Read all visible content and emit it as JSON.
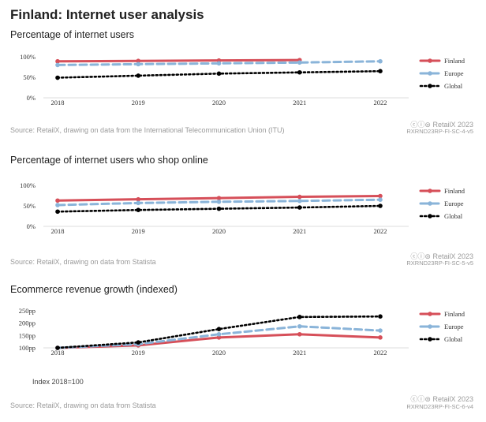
{
  "page": {
    "title": "Finland: Internet user analysis"
  },
  "colors": {
    "Finland": "#d64f59",
    "Europe": "#8ab4d9",
    "Global": "#000000"
  },
  "chart_data": [
    {
      "type": "line",
      "title": "Percentage of internet users",
      "x": [
        "2018",
        "2019",
        "2020",
        "2021",
        "2022"
      ],
      "y_ticks": [
        "0%",
        "50%",
        "100%"
      ],
      "ylim": [
        0,
        100
      ],
      "series": [
        {
          "name": "Finland",
          "values": [
            89,
            90,
            91,
            92,
            null
          ],
          "style": "solid"
        },
        {
          "name": "Europe",
          "values": [
            80,
            82,
            84,
            86,
            89
          ],
          "style": "dashed"
        },
        {
          "name": "Global",
          "values": [
            49,
            54,
            59,
            62,
            65
          ],
          "style": "dotted"
        }
      ],
      "legend": "right",
      "source": "Source: RetailX, drawing on data from the International Telecommunication Union (ITU)",
      "brand": "ⓒⓘ⊜ RetailX 2023",
      "code": "RXRND23RP-FI-SC-4-v5"
    },
    {
      "type": "line",
      "title": "Percentage of internet users who shop online",
      "x": [
        "2018",
        "2019",
        "2020",
        "2021",
        "2022"
      ],
      "y_ticks": [
        "0%",
        "50%",
        "100%"
      ],
      "ylim": [
        0,
        100
      ],
      "series": [
        {
          "name": "Finland",
          "values": [
            63,
            66,
            69,
            72,
            74
          ],
          "style": "solid"
        },
        {
          "name": "Europe",
          "values": [
            52,
            57,
            60,
            62,
            65
          ],
          "style": "dashed"
        },
        {
          "name": "Global",
          "values": [
            36,
            40,
            43,
            46,
            50
          ],
          "style": "dotted"
        }
      ],
      "legend": "right",
      "source": "Source: RetailX, drawing on data from Statista",
      "brand": "ⓒⓘ⊜ RetailX 2023",
      "code": "RXRND23RP-FI-SC-5-v5"
    },
    {
      "type": "line",
      "title": "Ecommerce revenue growth (indexed)",
      "x": [
        "2018",
        "2019",
        "2020",
        "2021",
        "2022"
      ],
      "y_ticks": [
        "100pp",
        "150pp",
        "200pp",
        "250pp"
      ],
      "ylim": [
        100,
        250
      ],
      "series": [
        {
          "name": "Finland",
          "values": [
            100,
            110,
            142,
            155,
            142
          ],
          "style": "solid"
        },
        {
          "name": "Europe",
          "values": [
            100,
            115,
            155,
            187,
            170
          ],
          "style": "dashed"
        },
        {
          "name": "Global",
          "values": [
            100,
            122,
            176,
            225,
            227
          ],
          "style": "dotted"
        }
      ],
      "legend": "right",
      "note": "Index 2018=100",
      "source": "Source: RetailX, drawing on data from Statista",
      "brand": "ⓒⓘ⊜ RetailX 2023",
      "code": "RXRND23RP-FI-SC-6-v4"
    }
  ]
}
